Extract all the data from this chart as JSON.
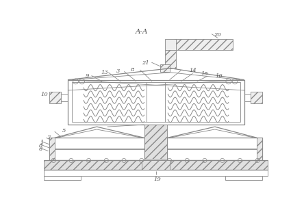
{
  "bg_color": "#ffffff",
  "lc": "#888888",
  "dc": "#555555",
  "figsize": [
    4.44,
    2.98
  ],
  "dpi": 100
}
